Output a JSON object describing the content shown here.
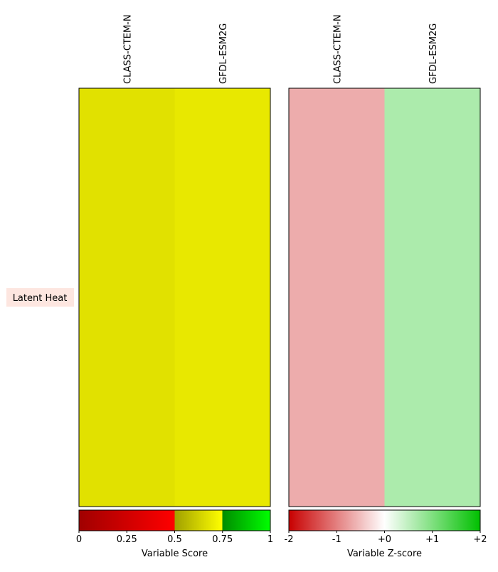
{
  "chart_data": [
    {
      "type": "heatmap",
      "categories": [
        "CLASS-CTEM-N",
        "GFDL-ESM2G"
      ],
      "rows": [
        "Latent Heat"
      ],
      "values": [
        [
          0.67,
          0.69
        ]
      ],
      "colorbar_label": "Variable Score",
      "clim": [
        0,
        1
      ],
      "cticks": [
        0,
        0.25,
        0.5,
        0.75,
        1
      ],
      "colorscale": [
        {
          "value": 0,
          "color": "#a00000"
        },
        {
          "value": 0.5,
          "color": "#ff0000"
        },
        {
          "value": 0.5,
          "color": "#a0a000"
        },
        {
          "value": 0.75,
          "color": "#ffff00"
        },
        {
          "value": 0.75,
          "color": "#008c00"
        },
        {
          "value": 1,
          "color": "#00ff00"
        }
      ]
    },
    {
      "type": "heatmap",
      "categories": [
        "CLASS-CTEM-N",
        "GFDL-ESM2G"
      ],
      "values": [
        [
          -0.65,
          0.65
        ]
      ],
      "colorbar_label": "Variable Z-score",
      "clim": [
        -2,
        2
      ],
      "cticks": [
        -2,
        -1,
        {
          "value": 0,
          "label": "+0"
        },
        {
          "value": 1,
          "label": "+1"
        },
        {
          "value": 2,
          "label": "+2"
        }
      ],
      "colorscale": [
        {
          "value": -2,
          "color": "#c80000"
        },
        {
          "value": 0,
          "color": "#ffffff"
        },
        {
          "value": 2,
          "color": "#00c000"
        }
      ]
    }
  ]
}
